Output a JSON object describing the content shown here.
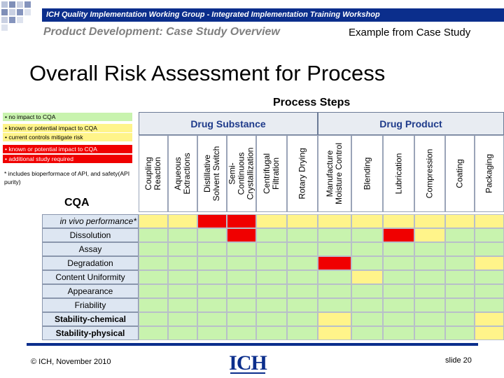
{
  "header": {
    "banner": "ICH Quality Implementation Working Group - Integrated Implementation Training Workshop",
    "subtitle": "Product Development: Case Study Overview",
    "example": "Example from Case Study"
  },
  "title": "Overall Risk Assessment for Process",
  "process_steps_label": "Process Steps",
  "legend": {
    "items": [
      {
        "text": "• no impact to CQA",
        "color": "green"
      },
      {
        "text": "• known or potential impact to CQA",
        "color": "yellow"
      },
      {
        "text": "• current controls mitigate risk",
        "color": "yellow"
      },
      {
        "text": "• known or potential impact to CQA",
        "color": "red"
      },
      {
        "text": "• additional study required",
        "color": "red"
      }
    ],
    "note": "* includes bioperformace of API, and safety(API purity)"
  },
  "cqa_label": "CQA",
  "matrix": {
    "groups": [
      {
        "label": "Drug Substance"
      },
      {
        "label": "Drug Product"
      }
    ],
    "columns": [
      {
        "label": "Coupling\nReaction"
      },
      {
        "label": "Aqueous\nExtractions"
      },
      {
        "label": "Distillative\nSolvent Switch"
      },
      {
        "label": "Semi-\nContinuous\nCrystallization"
      },
      {
        "label": "Centrifugal\nFiltration"
      },
      {
        "label": "Rotary Drying"
      },
      {
        "label": "Manufacture\nMoisture Control"
      },
      {
        "label": "Blending"
      },
      {
        "label": "Lubrication"
      },
      {
        "label": "Compression"
      },
      {
        "label": "Coating"
      },
      {
        "label": "Packaging"
      }
    ],
    "rows": [
      {
        "label": "in vivo performance*",
        "cells": [
          "Y",
          "Y",
          "R",
          "R",
          "Y",
          "Y",
          "Y",
          "Y",
          "Y",
          "Y",
          "Y",
          "Y"
        ]
      },
      {
        "label": "Dissolution",
        "cells": [
          "G",
          "G",
          "G",
          "R",
          "G",
          "G",
          "G",
          "G",
          "R",
          "Y",
          "G",
          "G"
        ]
      },
      {
        "label": "Assay",
        "cells": [
          "G",
          "G",
          "G",
          "G",
          "G",
          "G",
          "G",
          "G",
          "G",
          "G",
          "G",
          "G"
        ]
      },
      {
        "label": "Degradation",
        "cells": [
          "G",
          "G",
          "G",
          "G",
          "G",
          "G",
          "R",
          "G",
          "G",
          "G",
          "G",
          "Y"
        ]
      },
      {
        "label": "Content Uniformity",
        "cells": [
          "G",
          "G",
          "G",
          "G",
          "G",
          "G",
          "G",
          "Y",
          "G",
          "G",
          "G",
          "G"
        ]
      },
      {
        "label": "Appearance",
        "cells": [
          "G",
          "G",
          "G",
          "G",
          "G",
          "G",
          "G",
          "G",
          "G",
          "G",
          "G",
          "G"
        ]
      },
      {
        "label": "Friability",
        "cells": [
          "G",
          "G",
          "G",
          "G",
          "G",
          "G",
          "G",
          "G",
          "G",
          "G",
          "G",
          "G"
        ]
      },
      {
        "label": "Stability-chemical",
        "cells": [
          "G",
          "G",
          "G",
          "G",
          "G",
          "G",
          "Y",
          "G",
          "G",
          "G",
          "G",
          "Y"
        ]
      },
      {
        "label": "Stability-physical",
        "cells": [
          "G",
          "G",
          "G",
          "G",
          "G",
          "G",
          "Y",
          "G",
          "G",
          "G",
          "G",
          "Y"
        ]
      }
    ]
  },
  "colors": {
    "G": "#c8f3ae",
    "Y": "#fff48a",
    "R": "#f00000",
    "banner": "#0b2e8c",
    "header_text": "#1e3a8a"
  },
  "footer": {
    "copyright": "© ICH, November 2010",
    "logo_text": "ICH",
    "slide": "slide 20"
  }
}
